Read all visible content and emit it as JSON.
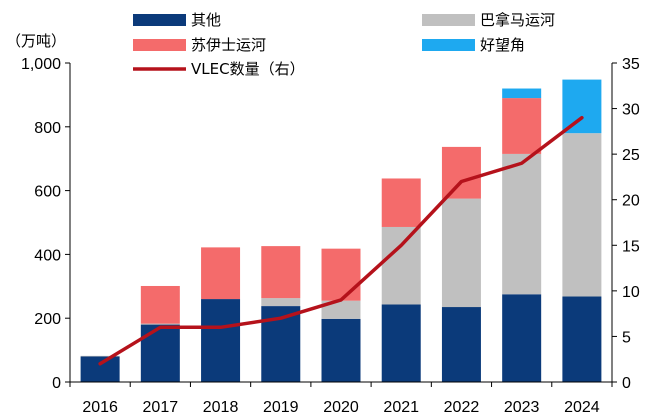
{
  "chart_data": {
    "type": "bar",
    "stacked": true,
    "categories": [
      "2016",
      "2017",
      "2018",
      "2019",
      "2020",
      "2021",
      "2022",
      "2023",
      "2024"
    ],
    "y_unit_label": "（万吨）",
    "ylim_left": [
      0,
      1000
    ],
    "yticks_left": [
      "0",
      "200",
      "400",
      "600",
      "800",
      "1,000"
    ],
    "ylim_right": [
      0,
      35
    ],
    "yticks_right": [
      "0",
      "5",
      "10",
      "15",
      "20",
      "25",
      "30",
      "35"
    ],
    "series": [
      {
        "name": "其他",
        "color": "#0b3a7a",
        "values": [
          80,
          180,
          260,
          238,
          198,
          243,
          235,
          275,
          268
        ]
      },
      {
        "name": "巴拿马运河",
        "color": "#c0c0c0",
        "values": [
          2,
          3,
          0,
          25,
          57,
          243,
          340,
          440,
          512
        ]
      },
      {
        "name": "苏伊士运河",
        "color": "#f46b6b",
        "values": [
          0,
          118,
          162,
          163,
          163,
          152,
          162,
          175,
          0
        ]
      },
      {
        "name": "好望角",
        "color": "#1ea9f0",
        "values": [
          0,
          0,
          0,
          0,
          0,
          0,
          0,
          30,
          168
        ]
      }
    ],
    "line": {
      "name": "VLEC数量（右）",
      "color": "#b5121b",
      "axis": "right",
      "values": [
        2,
        6,
        6,
        7,
        9,
        15,
        22,
        24,
        29
      ]
    },
    "grid": false,
    "legend_position": "top"
  }
}
